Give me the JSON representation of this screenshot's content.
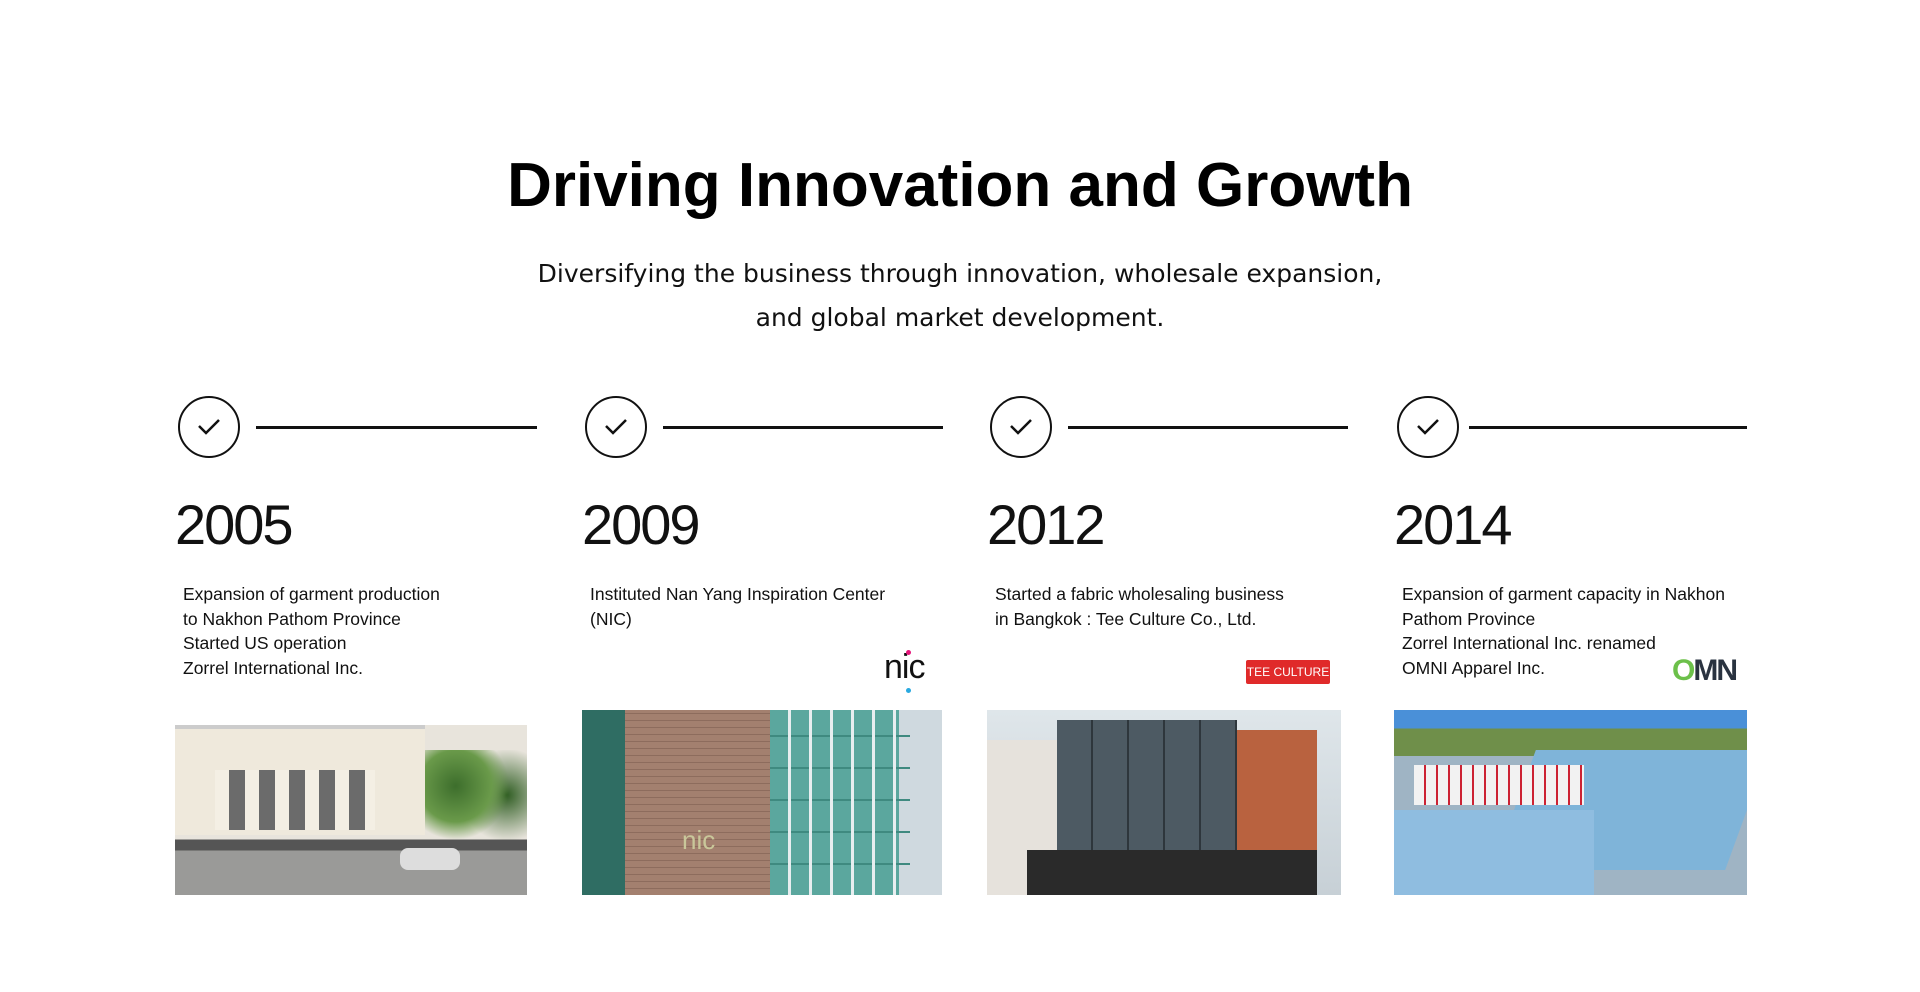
{
  "header": {
    "title": "Driving Innovation and Growth",
    "subtitle_lines": [
      "Diversifying the business through innovation, wholesale expansion,",
      "and global market development."
    ]
  },
  "milestones": [
    {
      "year": "2005",
      "lines": [
        "Expansion of garment production",
        "to Nakhon Pathom Province",
        "Started US operation",
        "Zorrel International Inc."
      ],
      "icon": "check-circle-icon"
    },
    {
      "year": "2009",
      "lines": [
        "Instituted Nan Yang Inspiration Center",
        "(NIC)"
      ],
      "logo": "nic",
      "icon": "check-circle-icon"
    },
    {
      "year": "2012",
      "lines": [
        "Started a fabric wholesaling business",
        "in Bangkok : Tee Culture Co., Ltd."
      ],
      "logo": "TEE CULTURE",
      "icon": "check-circle-icon"
    },
    {
      "year": "2014",
      "lines": [
        "Expansion of garment capacity in Nakhon",
        "Pathom Province",
        "Zorrel International Inc. renamed",
        "OMNI Apparel Inc."
      ],
      "logo": "OMN",
      "icon": "check-circle-icon"
    }
  ],
  "colors": {
    "nic_pink": "#e5157a",
    "nic_blue": "#29a9e0",
    "tee_red": "#e02a2a",
    "omni_green": "#6cc04a",
    "omni_dark": "#2a3340"
  }
}
